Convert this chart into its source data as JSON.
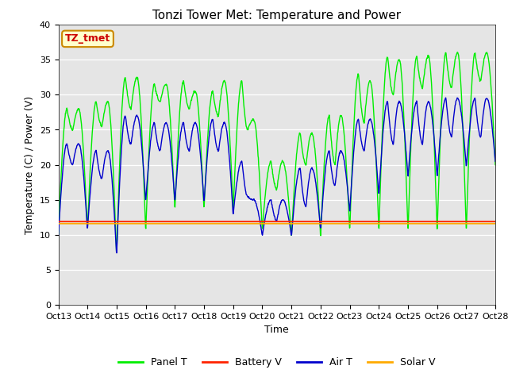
{
  "title": "Tonzi Tower Met: Temperature and Power",
  "xlabel": "Time",
  "ylabel": "Temperature (C) / Power (V)",
  "ylim": [
    0,
    40
  ],
  "yticks": [
    0,
    5,
    10,
    15,
    20,
    25,
    30,
    35,
    40
  ],
  "xtick_labels": [
    "Oct 13",
    "Oct 14",
    "Oct 15",
    "Oct 16",
    "Oct 17",
    "Oct 18",
    "Oct 19",
    "Oct 20",
    "Oct 21",
    "Oct 22",
    "Oct 23",
    "Oct 24",
    "Oct 25",
    "Oct 26",
    "Oct 27",
    "Oct 28"
  ],
  "panel_color": "#00ee00",
  "battery_color": "#ff2200",
  "air_color": "#0000cc",
  "solar_color": "#ffaa00",
  "bg_color": "#e5e5e5",
  "annotation_text": "TZ_tmet",
  "annotation_fg": "#cc0000",
  "annotation_bg": "#ffffcc",
  "annotation_border": "#cc8800",
  "title_fontsize": 11,
  "axis_fontsize": 9,
  "tick_fontsize": 8,
  "battery_level": 11.9,
  "solar_level": 11.6
}
